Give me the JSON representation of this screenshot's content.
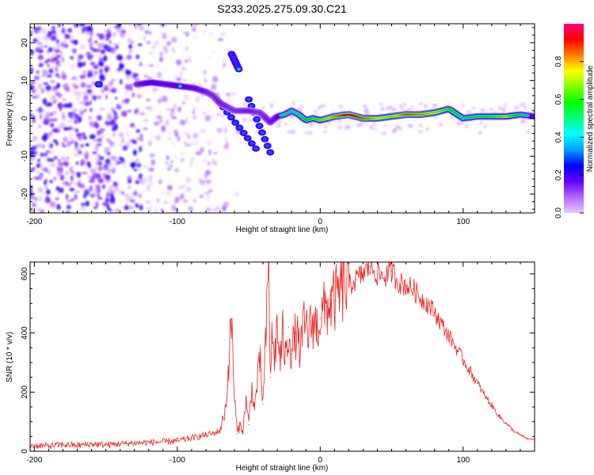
{
  "title": "S233.2025.275.09.30.C21",
  "chart_data": [
    {
      "type": "heatmap",
      "xlabel": "Height of straight line (km)",
      "ylabel": "Frequency (Hz)",
      "xlim": [
        -203,
        150
      ],
      "ylim": [
        -25,
        25
      ],
      "xticks": [
        -200,
        -100,
        0,
        100
      ],
      "yticks": [
        -20,
        -10,
        0,
        10,
        20
      ],
      "colorbar": {
        "label": "Normalized spectral amplitude",
        "range": [
          0,
          1
        ],
        "ticks": [
          0.0,
          0.2,
          0.4,
          0.6,
          0.8
        ],
        "colors": [
          "#e6ccff",
          "#b366ff",
          "#6600ff",
          "#0000ff",
          "#00a0ff",
          "#00ffff",
          "#00ff80",
          "#00ff00",
          "#80ff00",
          "#ffff00",
          "#ff8000",
          "#ff0000",
          "#ff0080"
        ]
      },
      "ridge": {
        "name": "Dominant frequency trace",
        "x": [
          -128,
          -118,
          -108,
          -98,
          -88,
          -80,
          -75,
          -70,
          -60,
          -50,
          -42,
          -35,
          -30,
          -25,
          -20,
          -15,
          -10,
          -5,
          0,
          10,
          20,
          30,
          40,
          50,
          60,
          70,
          80,
          90,
          100,
          110,
          120,
          130,
          140,
          150
        ],
        "y": [
          9,
          9.5,
          9,
          8.5,
          8,
          7,
          6,
          4,
          2,
          2,
          1.5,
          -1,
          0.5,
          1,
          2,
          1,
          -0.5,
          0,
          -0.5,
          0.5,
          1,
          0,
          0,
          0.5,
          1,
          1,
          1.5,
          2.5,
          0,
          0.5,
          0.5,
          0.5,
          1,
          0.5
        ],
        "amplitude": [
          0.35,
          0.45,
          0.4,
          0.45,
          0.4,
          0.35,
          0.3,
          0.35,
          0.3,
          0.35,
          0.3,
          0.35,
          0.4,
          0.5,
          0.45,
          0.5,
          0.55,
          0.6,
          0.65,
          0.8,
          0.95,
          0.85,
          0.75,
          0.7,
          0.85,
          0.8,
          0.75,
          0.6,
          0.5,
          0.55,
          0.6,
          0.7,
          0.5,
          0.4
        ]
      },
      "features": [
        {
          "name": "Arc segment",
          "x": [
            -62,
            -57
          ],
          "y": [
            17,
            13
          ],
          "amplitude": 0.35
        },
        {
          "name": "Descending streak",
          "x": [
            -68,
            -45
          ],
          "y": [
            3,
            -8
          ],
          "amplitude": 0.3
        },
        {
          "name": "Secondary streak",
          "x": [
            -50,
            -35
          ],
          "y": [
            5,
            -9
          ],
          "amplitude": 0.3
        },
        {
          "name": "Isolated spot",
          "x": [
            -155,
            -155
          ],
          "y": [
            9,
            9
          ],
          "amplitude": 0.3
        }
      ]
    },
    {
      "type": "line",
      "xlabel": "Height of straight line (km)",
      "ylabel": "SNR (10 * v/v)",
      "xlim": [
        -203,
        150
      ],
      "ylim": [
        0,
        640
      ],
      "xticks": [
        -200,
        -100,
        0,
        100
      ],
      "yticks": [
        0,
        200,
        400,
        600
      ],
      "series": [
        {
          "name": "SNR",
          "color": "#ee2222",
          "x": [
            -203,
            -190,
            -180,
            -170,
            -160,
            -150,
            -140,
            -130,
            -120,
            -110,
            -100,
            -95,
            -90,
            -85,
            -80,
            -75,
            -70,
            -66,
            -62,
            -60,
            -58,
            -56,
            -54,
            -52,
            -50,
            -48,
            -46,
            -44,
            -42,
            -40,
            -38,
            -36,
            -35,
            -34,
            -32,
            -30,
            -28,
            -26,
            -24,
            -22,
            -20,
            -17,
            -14,
            -11,
            -8,
            -5,
            -2,
            0,
            5,
            10,
            15,
            20,
            25,
            30,
            35,
            40,
            45,
            50,
            55,
            60,
            65,
            70,
            75,
            80,
            85,
            90,
            95,
            100,
            105,
            110,
            115,
            120,
            125,
            130,
            135,
            140,
            145,
            150
          ],
          "y": [
            20,
            18,
            22,
            20,
            24,
            22,
            25,
            28,
            30,
            32,
            35,
            40,
            45,
            50,
            55,
            60,
            70,
            150,
            445,
            180,
            60,
            90,
            70,
            180,
            90,
            220,
            140,
            240,
            300,
            160,
            380,
            640,
            250,
            380,
            320,
            420,
            300,
            400,
            300,
            420,
            330,
            400,
            340,
            430,
            400,
            440,
            420,
            450,
            490,
            510,
            545,
            560,
            580,
            600,
            625,
            600,
            590,
            610,
            570,
            560,
            550,
            520,
            500,
            470,
            430,
            390,
            350,
            310,
            270,
            230,
            190,
            155,
            120,
            95,
            70,
            55,
            42,
            40
          ]
        }
      ]
    }
  ]
}
